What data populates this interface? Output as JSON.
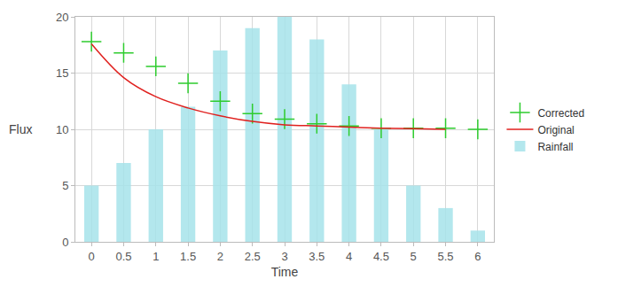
{
  "chart_data": {
    "type": "combo",
    "x_label": "Time",
    "y_label": "Flux",
    "x": [
      0,
      0.5,
      1,
      1.5,
      2,
      2.5,
      3,
      3.5,
      4,
      4.5,
      5,
      5.5,
      6
    ],
    "xlim": [
      -0.25,
      6.25
    ],
    "xticks": [
      0,
      0.5,
      1,
      1.5,
      2,
      2.5,
      3,
      3.5,
      4,
      4.5,
      5,
      5.5,
      6
    ],
    "ylim": [
      0,
      20
    ],
    "yticks": [
      0,
      5,
      10,
      15,
      20
    ],
    "grid": true,
    "legend": "right",
    "series": [
      {
        "name": "Corrected",
        "type": "scatter",
        "marker": "cross",
        "color": "#2ecc2e",
        "values": [
          17.8,
          16.8,
          15.6,
          14.1,
          12.5,
          11.4,
          10.9,
          10.5,
          10.3,
          10.1,
          10.1,
          10.1,
          10
        ]
      },
      {
        "name": "Original",
        "type": "line",
        "line_style": "solid",
        "color": "#e0201e",
        "values": [
          17.6,
          14.6,
          12.9,
          11.9,
          11.2,
          10.7,
          10.4,
          10.3,
          10.2,
          10.1,
          10.05,
          10,
          null
        ]
      },
      {
        "name": "Rainfall",
        "type": "bar",
        "color": "#a6e3ea",
        "values": [
          5,
          7,
          10,
          12,
          17,
          19,
          20,
          18,
          14,
          10,
          5,
          3,
          1
        ]
      }
    ]
  }
}
